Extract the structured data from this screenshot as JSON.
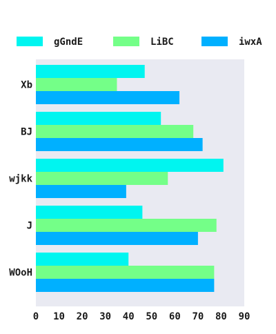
{
  "chart_data": {
    "type": "bar",
    "orientation": "horizontal",
    "categories": [
      "Xb",
      "BJ",
      "wjkk",
      "J",
      "WOoH"
    ],
    "series": [
      {
        "name": "gGndE",
        "color": "#00f5f0",
        "values": [
          47,
          54,
          81,
          46,
          40
        ]
      },
      {
        "name": "LiBC",
        "color": "#74ff88",
        "values": [
          35,
          68,
          57,
          78,
          77
        ]
      },
      {
        "name": "iwxA",
        "color": "#00b0ff",
        "values": [
          62,
          72,
          39,
          70,
          77
        ]
      }
    ],
    "xlim": [
      0,
      90
    ],
    "xticks": [
      0,
      10,
      20,
      30,
      40,
      50,
      60,
      70,
      80,
      90
    ],
    "legend_position": "top",
    "plot_background": "#e9eaf2",
    "grid": false
  }
}
